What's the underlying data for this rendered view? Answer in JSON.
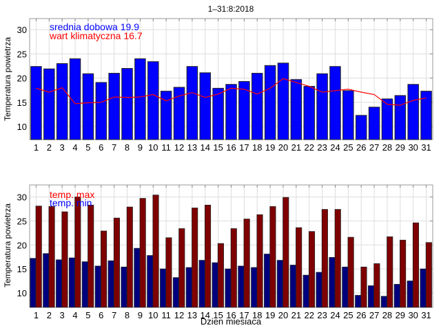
{
  "chart_data": [
    {
      "type": "bar",
      "title": "1–31:8:2018",
      "xlabel": "",
      "ylabel": "Temperatura powietrza",
      "ylim": [
        7.3,
        32.3
      ],
      "yticks": [
        10,
        15,
        20,
        25,
        30
      ],
      "grid": true,
      "categories": [
        "1",
        "2",
        "3",
        "4",
        "5",
        "6",
        "7",
        "8",
        "9",
        "10",
        "11",
        "12",
        "13",
        "14",
        "15",
        "16",
        "17",
        "18",
        "19",
        "20",
        "21",
        "22",
        "23",
        "24",
        "25",
        "26",
        "27",
        "28",
        "29",
        "30",
        "31"
      ],
      "series": [
        {
          "name": "srednia dobowa",
          "kind": "bar",
          "color": "#0000ff",
          "values": [
            22.4,
            21.9,
            23.0,
            24.0,
            20.9,
            19.1,
            21.0,
            22.0,
            24.0,
            23.4,
            17.3,
            18.1,
            22.4,
            21.1,
            17.9,
            18.7,
            19.3,
            21.0,
            22.6,
            23.1,
            19.7,
            18.3,
            20.9,
            22.4,
            17.4,
            12.3,
            14.0,
            15.7,
            16.4,
            18.7,
            17.3
          ]
        },
        {
          "name": "wart klimatyczna",
          "kind": "line",
          "color": "#ff0000",
          "values": [
            17.9,
            17.1,
            18.0,
            14.7,
            14.9,
            15.0,
            16.1,
            16.0,
            16.1,
            16.6,
            15.3,
            16.3,
            17.0,
            16.0,
            16.7,
            17.9,
            17.7,
            16.7,
            17.9,
            19.9,
            19.1,
            18.3,
            17.1,
            17.4,
            17.7,
            17.1,
            16.6,
            14.6,
            14.4,
            15.4,
            15.9
          ]
        }
      ],
      "legend": [
        {
          "label": "srednia dobowa 19.9",
          "color": "#0000ff"
        },
        {
          "label": "wart klimatyczna 16.7",
          "color": "#ff0000"
        }
      ],
      "legend_position": "top-left"
    },
    {
      "type": "bar",
      "title": "",
      "xlabel": "Dzien miesiaca",
      "ylabel": "Temperatura powietrza",
      "ylim": [
        7.0,
        32.5
      ],
      "yticks": [
        10,
        15,
        20,
        25,
        30
      ],
      "grid": true,
      "categories": [
        "1",
        "2",
        "3",
        "4",
        "5",
        "6",
        "7",
        "8",
        "9",
        "10",
        "11",
        "12",
        "13",
        "14",
        "15",
        "16",
        "17",
        "18",
        "19",
        "20",
        "21",
        "22",
        "23",
        "24",
        "25",
        "26",
        "27",
        "28",
        "29",
        "30",
        "31"
      ],
      "series": [
        {
          "name": "temp. min",
          "kind": "bar",
          "color": "#00007f",
          "values": [
            17.2,
            18.2,
            16.9,
            17.3,
            16.5,
            15.6,
            16.7,
            15.4,
            19.3,
            17.8,
            15.0,
            13.2,
            15.3,
            16.8,
            16.3,
            15.0,
            15.6,
            15.3,
            18.1,
            16.8,
            15.8,
            13.7,
            14.3,
            17.4,
            15.4,
            9.5,
            11.5,
            9.3,
            11.8,
            12.5,
            15.0
          ]
        },
        {
          "name": "temp. max",
          "kind": "bar",
          "color": "#7f0000",
          "values": [
            28.1,
            28.0,
            26.9,
            30.0,
            28.3,
            22.9,
            25.6,
            27.9,
            29.7,
            30.4,
            21.5,
            23.4,
            27.7,
            28.3,
            20.3,
            23.4,
            25.4,
            26.3,
            28.0,
            29.9,
            23.6,
            22.8,
            27.4,
            27.4,
            21.6,
            15.4,
            16.1,
            21.7,
            21.0,
            24.6,
            20.5
          ]
        }
      ],
      "legend": [
        {
          "label": "temp. max",
          "color": "#ff0000"
        },
        {
          "label": "temp. min",
          "color": "#0000ff"
        }
      ],
      "legend_position": "top-left"
    }
  ]
}
